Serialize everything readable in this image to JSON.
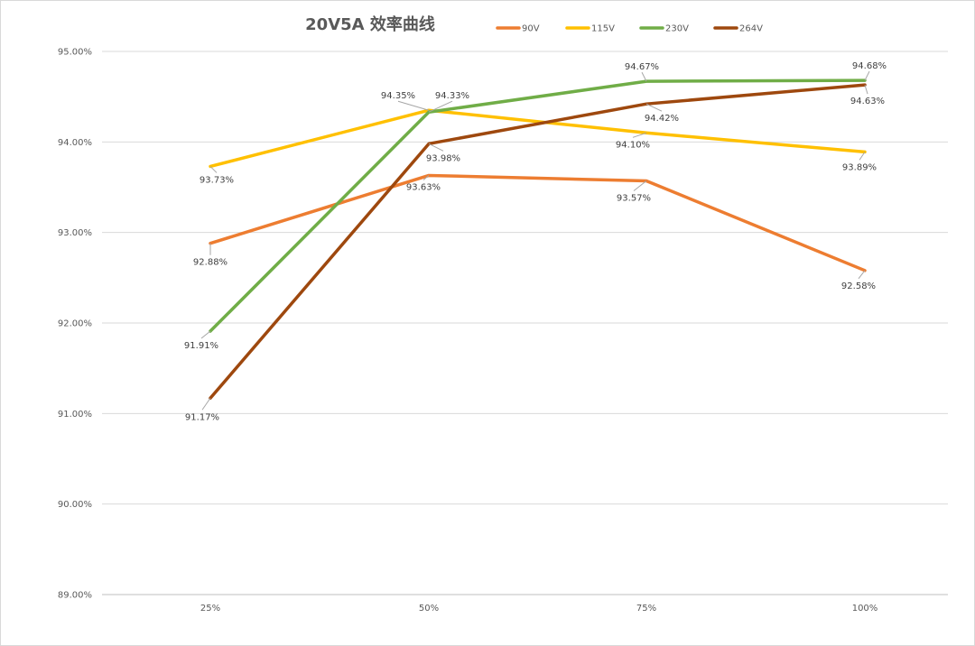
{
  "chart_data": {
    "type": "line",
    "title": "20V5A 效率曲线",
    "xlabel": "",
    "ylabel": "",
    "categories": [
      "25%",
      "50%",
      "75%",
      "100%"
    ],
    "ylim": [
      89.0,
      95.0
    ],
    "ytick_values": [
      89,
      90,
      91,
      92,
      93,
      94,
      95
    ],
    "ytick_labels": [
      "89.00%",
      "90.00%",
      "91.00%",
      "92.00%",
      "93.00%",
      "94.00%",
      "95.00%"
    ],
    "grid": true,
    "legend_position": "top",
    "series": [
      {
        "name": "90V",
        "color": "#ED7D31",
        "values": [
          92.88,
          93.63,
          93.57,
          92.58
        ],
        "labels": [
          "92.88%",
          "93.63%",
          "93.57%",
          "92.58%"
        ]
      },
      {
        "name": "115V",
        "color": "#FFC000",
        "values": [
          93.73,
          94.35,
          94.1,
          93.89
        ],
        "labels": [
          "93.73%",
          "94.35%",
          "94.10%",
          "93.89%"
        ]
      },
      {
        "name": "230V",
        "color": "#70AD47",
        "values": [
          91.91,
          94.33,
          94.67,
          94.68
        ],
        "labels": [
          "91.91%",
          "94.33%",
          "94.67%",
          "94.68%"
        ]
      },
      {
        "name": "264V",
        "color": "#9E480E",
        "values": [
          91.17,
          93.98,
          94.42,
          94.63
        ],
        "labels": [
          "91.17%",
          "93.98%",
          "94.42%",
          "94.63%"
        ]
      }
    ]
  }
}
